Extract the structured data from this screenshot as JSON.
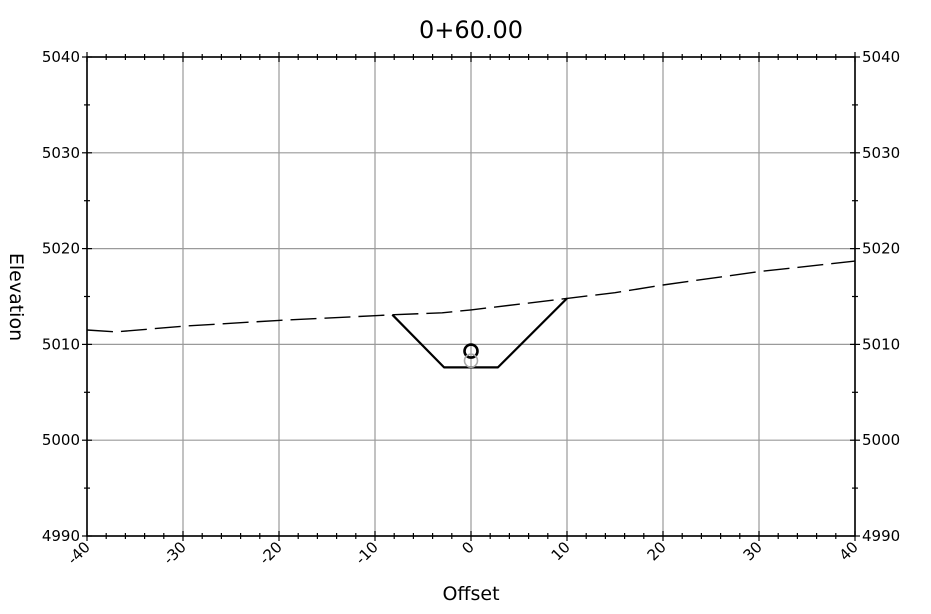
{
  "chart_data": {
    "type": "line",
    "title": "0+60.00",
    "xlabel": "Offset",
    "ylabel": "Elevation",
    "xlim": [
      -40,
      40
    ],
    "ylim": [
      4990,
      5040
    ],
    "x_ticks": [
      -40,
      -30,
      -20,
      -10,
      0,
      10,
      20,
      30,
      40
    ],
    "y_ticks": [
      4990,
      5000,
      5010,
      5020,
      5030,
      5040
    ],
    "x_tick_labels": [
      "-40",
      "-30",
      "-20",
      "-10",
      "0",
      "10",
      "20",
      "30",
      "40"
    ],
    "y_tick_labels": [
      "4990",
      "5000",
      "5010",
      "5020",
      "5030",
      "5040"
    ],
    "grid": true,
    "series": [
      {
        "style": "dashed",
        "color": "#000000",
        "x": [
          -40,
          -37,
          -30,
          -20,
          -10,
          -8,
          -3,
          0,
          5,
          10,
          15,
          20,
          30,
          40
        ],
        "y": [
          5011.5,
          5011.3,
          5011.9,
          5012.5,
          5013.0,
          5013.1,
          5013.3,
          5013.6,
          5014.2,
          5014.8,
          5015.4,
          5016.2,
          5017.6,
          5018.7
        ]
      },
      {
        "style": "solid",
        "color": "#000000",
        "x": [
          -8.2,
          -2.8,
          2.8,
          10
        ],
        "y": [
          5013.1,
          5007.6,
          5007.6,
          5014.8
        ]
      }
    ],
    "markers": [
      {
        "shape": "circle",
        "x": 0,
        "y": 5009.3,
        "color": "#000000"
      },
      {
        "shape": "circle",
        "x": 0,
        "y": 5008.3,
        "color": "#aaaaaa"
      }
    ]
  }
}
